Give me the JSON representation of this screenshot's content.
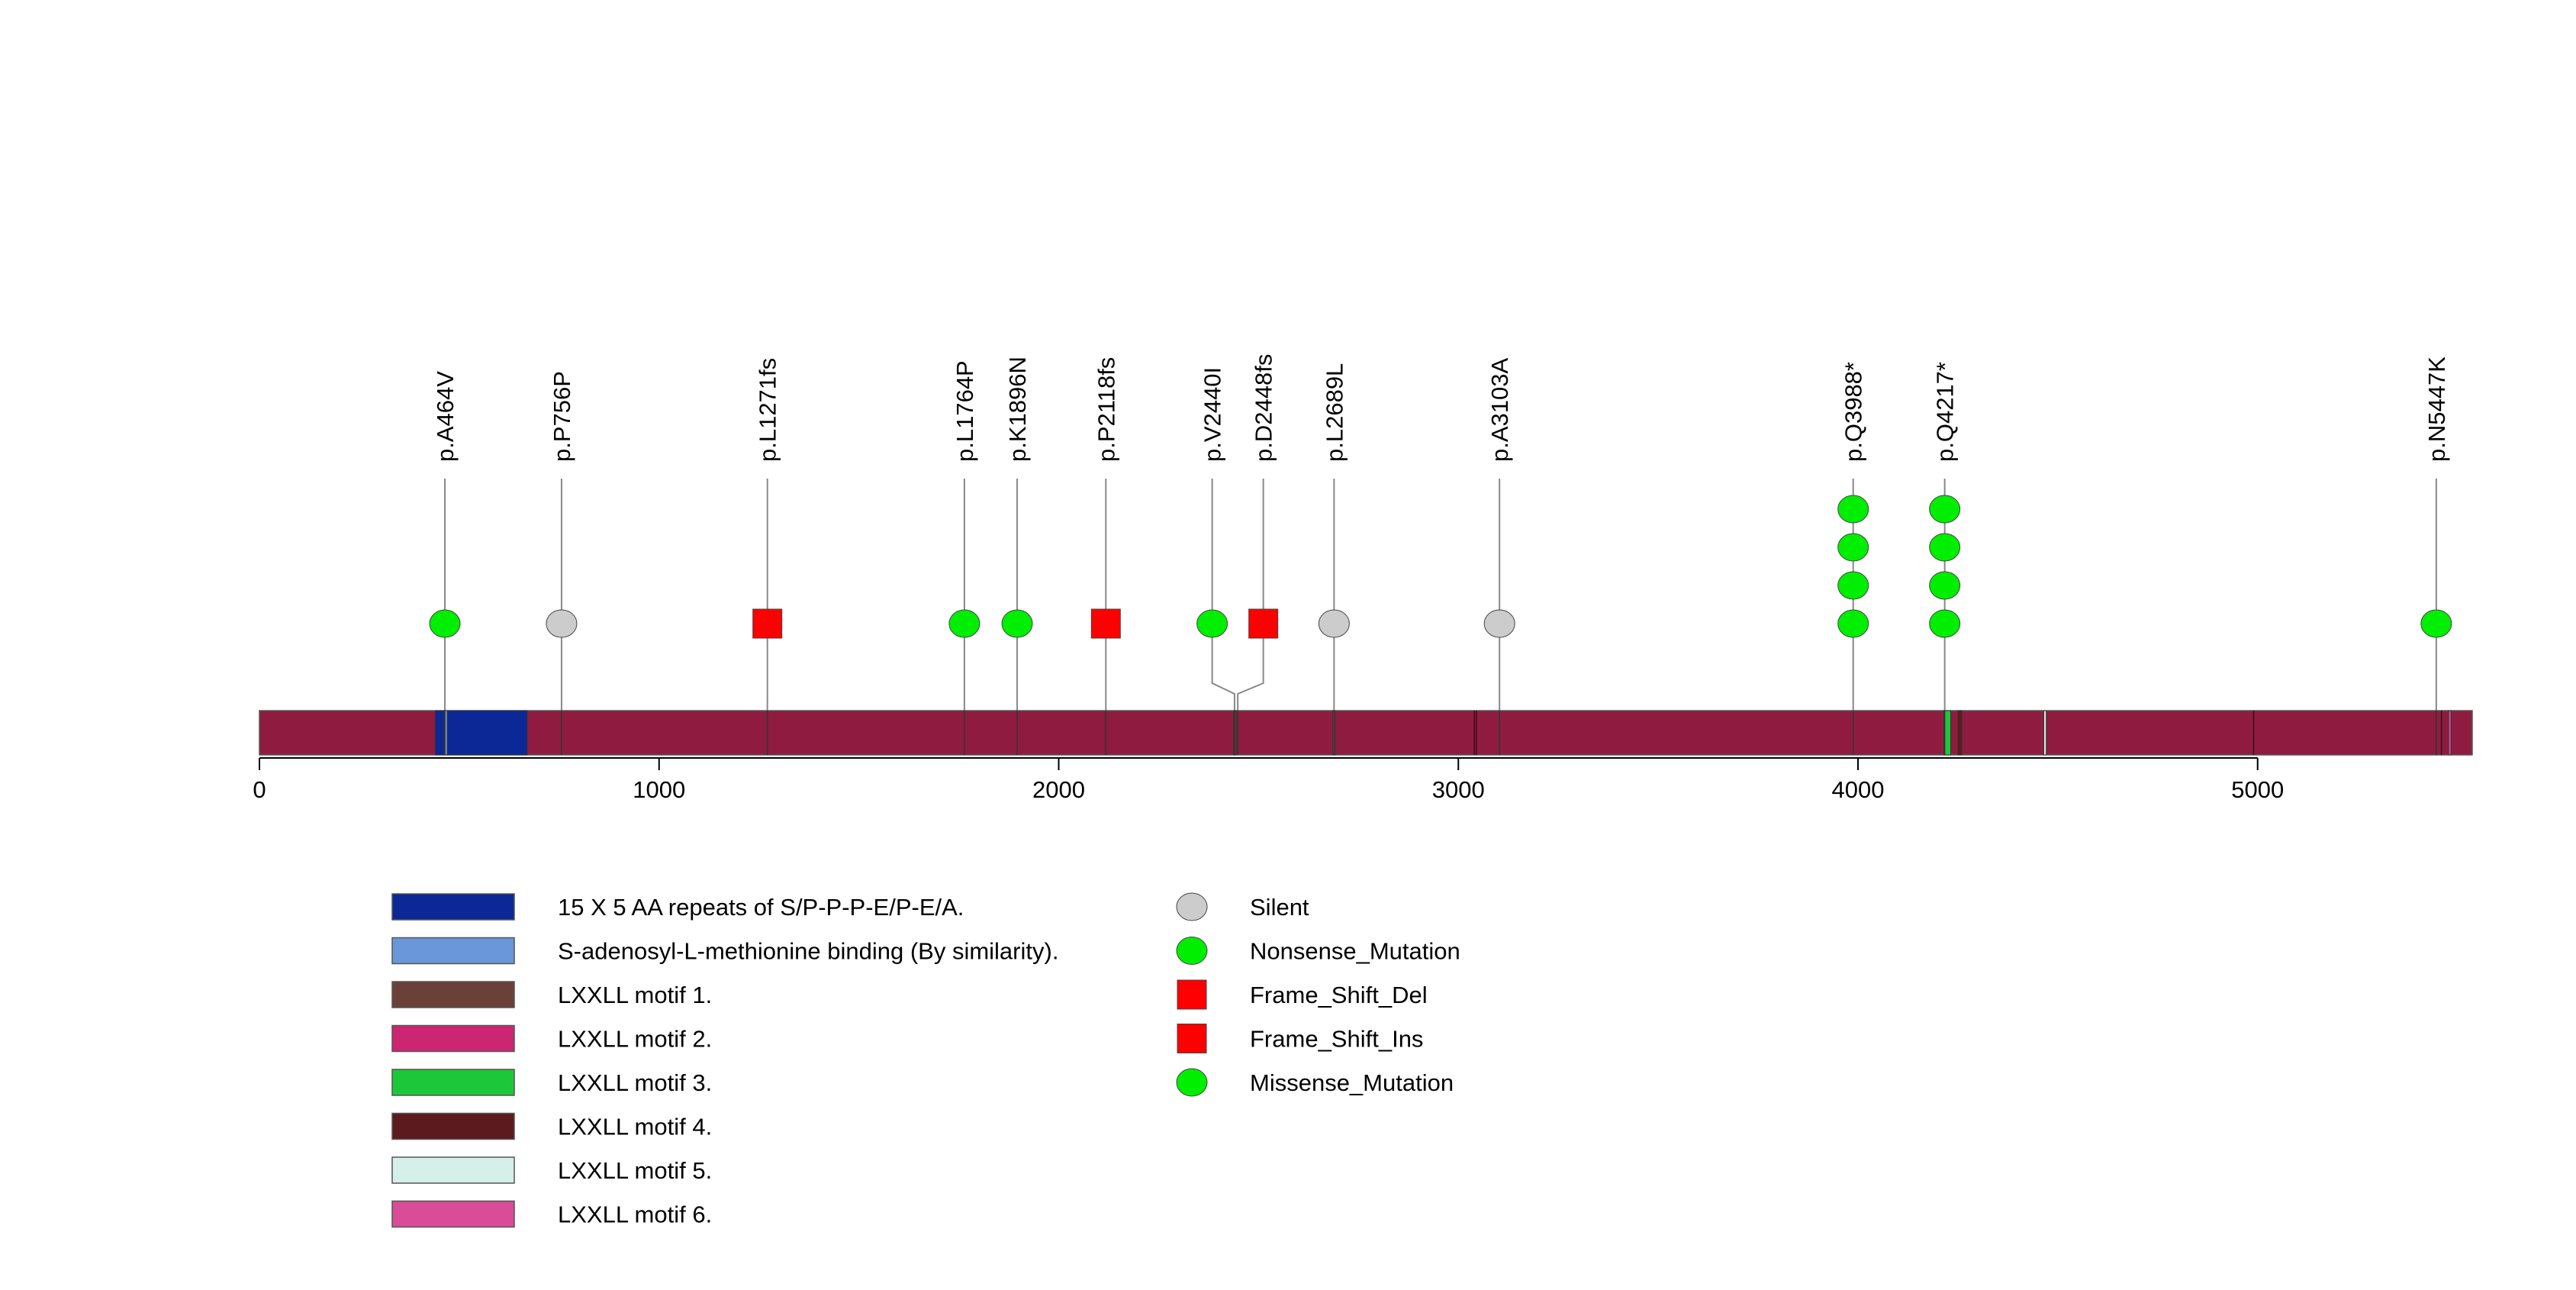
{
  "chart_data": {
    "type": "lollipop",
    "protein_length": 5537,
    "xlim": [
      0,
      5537
    ],
    "x_ticks": [
      0,
      1000,
      2000,
      3000,
      4000,
      5000
    ],
    "backbone_color": "#8f1c40",
    "domains": [
      {
        "name": "15 X 5 AA repeats of S/P-P-P-E/P-E/A.",
        "start": 440,
        "end": 670,
        "color": "#0c2896"
      },
      {
        "name": "S-adenosyl-L-methionine binding (By similarity).",
        "start": 462,
        "end": 470,
        "color": "#6a96da"
      },
      {
        "name": "LXXLL motif 1.",
        "start": 2438,
        "end": 2444,
        "color": "#6b4038"
      },
      {
        "name": "LXXLL motif 2.",
        "start": 2686,
        "end": 2692,
        "color": "#cc2572"
      },
      {
        "name": "LXXLL motif 3.",
        "start": 4215,
        "end": 4232,
        "color": "#1cc83a"
      },
      {
        "name": "LXXLL motif 4.",
        "start": 4250,
        "end": 4260,
        "color": "#5c1a1e"
      },
      {
        "name": "LXXLL motif 5.",
        "start": 4465,
        "end": 4471,
        "color": "#d4f0e8"
      },
      {
        "name": "LXXLL motif 6.",
        "start": 5478,
        "end": 5484,
        "color": "#d84c98"
      }
    ],
    "domain_boundaries": [
      3040,
      3045,
      4990,
      5460
    ],
    "mutations": [
      {
        "label": "p.A464V",
        "position": 464,
        "type": "Missense_Mutation",
        "count": 1
      },
      {
        "label": "p.P756P",
        "position": 756,
        "type": "Silent",
        "count": 1
      },
      {
        "label": "p.L1271fs",
        "position": 1271,
        "type": "Frame_Shift_Del",
        "count": 1
      },
      {
        "label": "p.L1764P",
        "position": 1764,
        "type": "Missense_Mutation",
        "count": 1
      },
      {
        "label": "p.K1896N",
        "position": 1896,
        "type": "Missense_Mutation",
        "count": 1
      },
      {
        "label": "p.P2118fs",
        "position": 2118,
        "type": "Frame_Shift_Del",
        "count": 1
      },
      {
        "label": "p.V2440I",
        "position": 2440,
        "type": "Missense_Mutation",
        "count": 1,
        "marker_position": 2384
      },
      {
        "label": "p.D2448fs",
        "position": 2448,
        "type": "Frame_Shift_Ins",
        "count": 1,
        "marker_position": 2512
      },
      {
        "label": "p.L2689L",
        "position": 2689,
        "type": "Silent",
        "count": 1
      },
      {
        "label": "p.A3103A",
        "position": 3103,
        "type": "Silent",
        "count": 1
      },
      {
        "label": "p.Q3988*",
        "position": 3988,
        "type": "Nonsense_Mutation",
        "count": 4
      },
      {
        "label": "p.Q4217*",
        "position": 4217,
        "type": "Nonsense_Mutation",
        "count": 4
      },
      {
        "label": "p.N5447K",
        "position": 5447,
        "type": "Missense_Mutation",
        "count": 1
      }
    ],
    "legend_mutation_types": [
      {
        "name": "Silent",
        "shape": "circle",
        "color": "#cccccc"
      },
      {
        "name": "Nonsense_Mutation",
        "shape": "circle",
        "color": "#00ee00"
      },
      {
        "name": "Frame_Shift_Del",
        "shape": "square",
        "color": "#ff0000"
      },
      {
        "name": "Frame_Shift_Ins",
        "shape": "square",
        "color": "#ff0000"
      },
      {
        "name": "Missense_Mutation",
        "shape": "circle",
        "color": "#00ee00"
      }
    ]
  }
}
